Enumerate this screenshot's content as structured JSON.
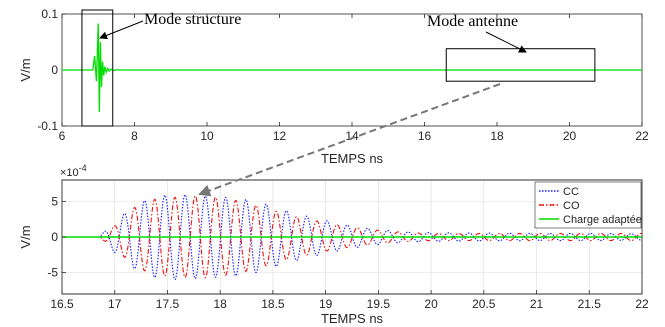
{
  "chart_data": [
    {
      "type": "line",
      "xlabel": "TEMPS ns",
      "ylabel": "V/m",
      "xlim": [
        6,
        22
      ],
      "ylim": [
        -0.1,
        0.1
      ],
      "x_ticks": [
        6,
        8,
        10,
        12,
        14,
        16,
        18,
        20,
        22
      ],
      "x_tick_labels": [
        "6",
        "8",
        "10",
        "12",
        "14",
        "16",
        "18",
        "20",
        "22"
      ],
      "y_ticks": [
        -0.1,
        0,
        0.1
      ],
      "y_tick_labels": [
        "-0.1",
        "0",
        "0.1"
      ],
      "grid": false,
      "series": [
        {
          "color": "#00dd00",
          "x": [
            6.0,
            6.85,
            6.9,
            6.95,
            7.0,
            7.03,
            7.06,
            7.09,
            7.12,
            7.15,
            7.18,
            7.22,
            7.26,
            7.3,
            7.35,
            7.4,
            7.5,
            7.6,
            22.0
          ],
          "y": [
            0,
            0,
            0.025,
            -0.02,
            0.083,
            -0.075,
            0.05,
            -0.03,
            0.015,
            -0.01,
            0.006,
            -0.004,
            0.003,
            -0.002,
            0.0015,
            -0.001,
            0.0005,
            0,
            0
          ]
        }
      ],
      "annotations": [
        {
          "text": "Mode structure",
          "box_x": [
            6.55,
            7.4
          ],
          "box_y": [
            -0.1,
            0.1
          ]
        },
        {
          "text": "Mode antenne",
          "box_x": [
            16.6,
            20.7
          ],
          "box_y": [
            -0.02,
            0.038
          ]
        }
      ]
    },
    {
      "type": "line",
      "xlabel": "TEMPS ns",
      "ylabel": "V/m",
      "y_exponent": "×10",
      "y_exponent_power": "-4",
      "xlim": [
        16.5,
        22
      ],
      "ylim": [
        -8,
        8
      ],
      "x_ticks": [
        16.5,
        17,
        17.5,
        18,
        18.5,
        19,
        19.5,
        20,
        20.5,
        21,
        21.5,
        22
      ],
      "x_tick_labels": [
        "16.5",
        "17",
        "17.5",
        "18",
        "18.5",
        "19",
        "19.5",
        "20",
        "20.5",
        "21",
        "21.5",
        "22"
      ],
      "y_ticks": [
        -5,
        0,
        5
      ],
      "y_tick_labels": [
        "-5",
        "0",
        "5"
      ],
      "grid": true,
      "legend_position": "top-right",
      "series": [
        {
          "name": "CC",
          "color": "#1a1aff",
          "dash": "dotted",
          "x": [
            16.5,
            16.85,
            17.0,
            17.2,
            17.4,
            17.6,
            17.8,
            18.0,
            18.2,
            18.4,
            18.6,
            18.8,
            19.0,
            19.2,
            19.4,
            19.6,
            19.8,
            20.0,
            20.5,
            21.0,
            21.5,
            22.0
          ],
          "y": [
            0,
            0,
            2.2,
            4.6,
            5.8,
            6.0,
            5.8,
            5.6,
            5.4,
            4.8,
            3.8,
            3.0,
            2.3,
            1.7,
            1.2,
            0.9,
            0.7,
            0.6,
            0.55,
            0.5,
            0.5,
            0.45
          ]
        },
        {
          "name": "CO",
          "color": "#ee1111",
          "dash": "dashdot",
          "x": [
            16.5,
            16.85,
            17.0,
            17.2,
            17.4,
            17.6,
            17.8,
            18.0,
            18.2,
            18.4,
            18.6,
            18.8,
            19.0,
            19.2,
            19.4,
            19.6,
            19.8,
            20.0,
            20.5,
            21.0,
            21.5,
            22.0
          ],
          "y": [
            0,
            0,
            1.6,
            4.3,
            5.4,
            5.6,
            5.8,
            5.5,
            5.0,
            4.2,
            3.3,
            2.6,
            2.0,
            1.5,
            1.1,
            0.8,
            0.6,
            0.5,
            0.5,
            0.5,
            0.5,
            0.5
          ]
        },
        {
          "name": "Charge adaptée",
          "color": "#00dd00",
          "dash": "solid",
          "x": [
            16.5,
            22.0
          ],
          "y": [
            0,
            0
          ]
        }
      ]
    }
  ]
}
